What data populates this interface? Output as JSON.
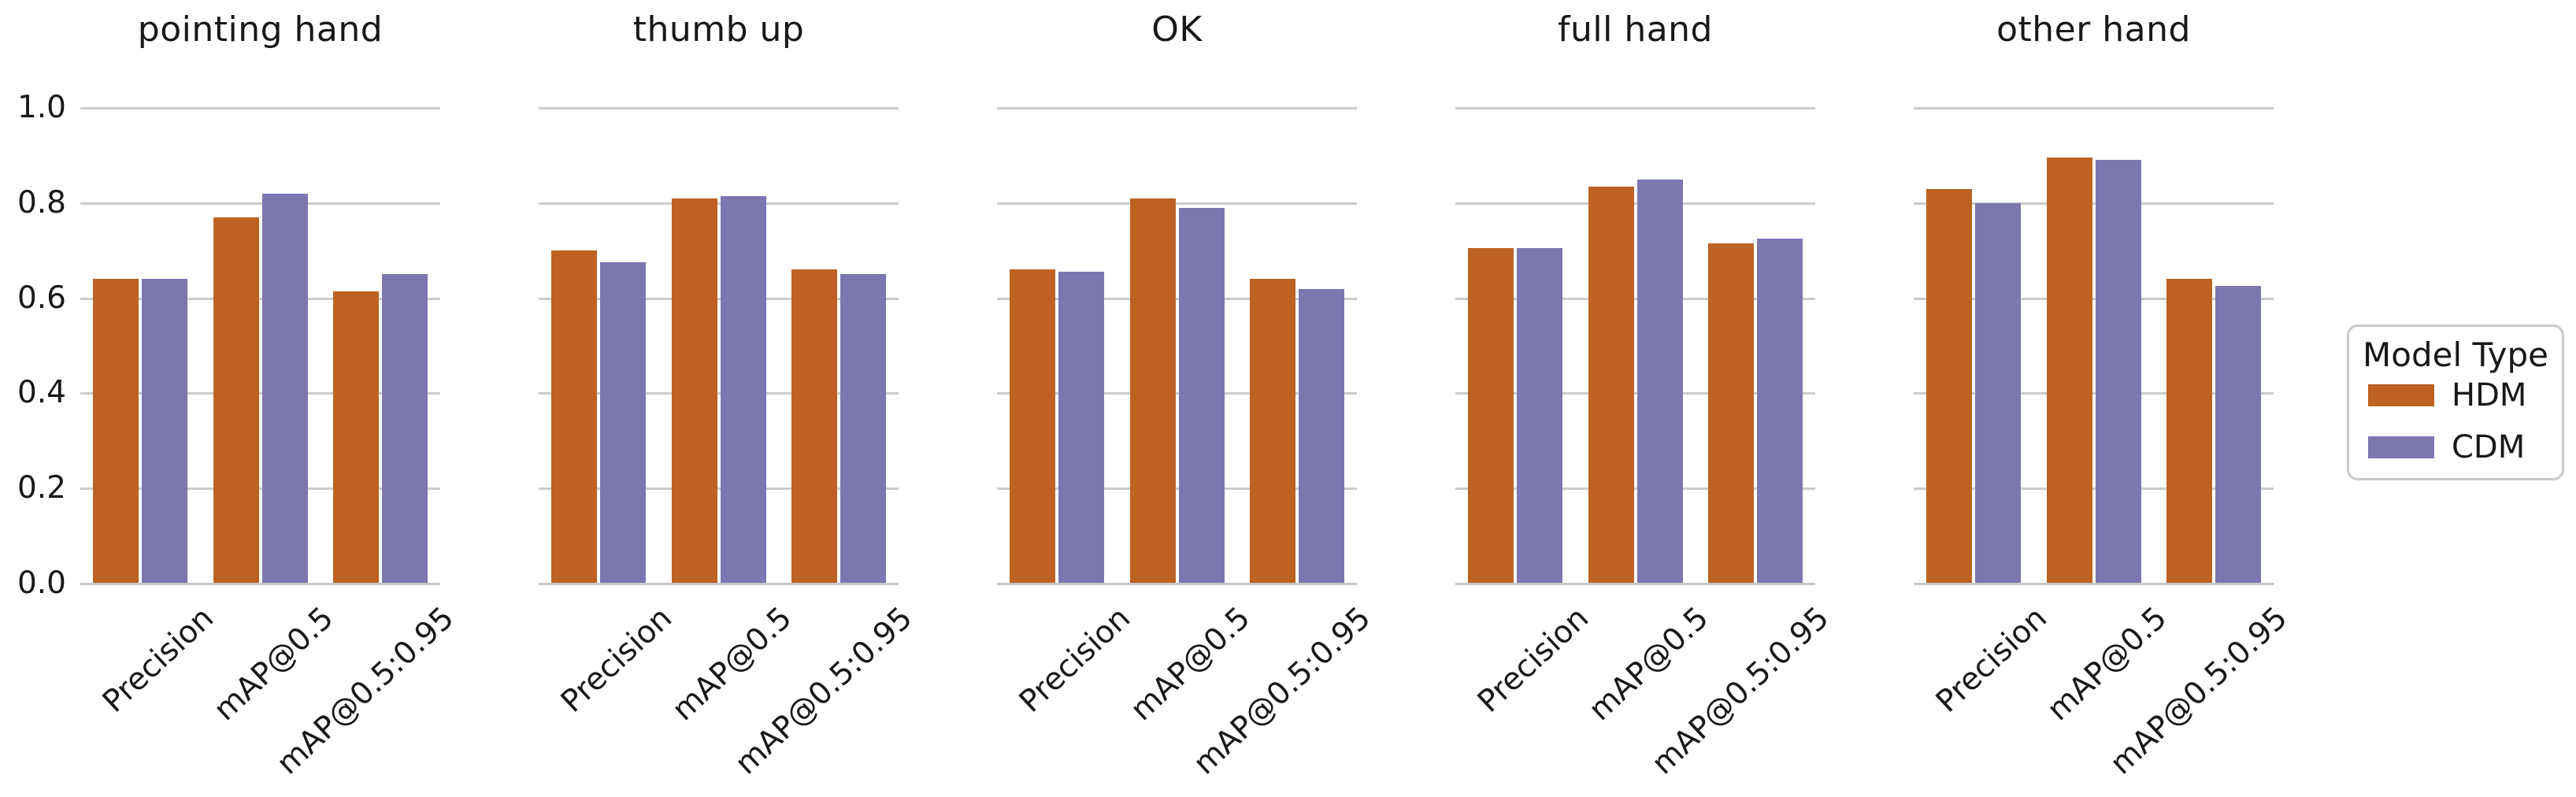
{
  "colors": {
    "hdm": "#bd6222",
    "cdm": "#7c77b0",
    "grid": "#cbcbcb",
    "spine": "#c6c6c6",
    "text": "#181818",
    "background": "#ffffff"
  },
  "legend": {
    "title": "Model Type",
    "entries": [
      {
        "label": "HDM",
        "color": "#bd6222"
      },
      {
        "label": "CDM",
        "color": "#7c77b0"
      }
    ]
  },
  "chart_data": {
    "type": "bar",
    "grid": true,
    "legend_position": "right",
    "legend_title": "Model Type",
    "ylim": [
      0.0,
      1.0
    ],
    "y_ticks": [
      "0.0",
      "0.2",
      "0.4",
      "0.6",
      "0.8",
      "1.0"
    ],
    "categories": [
      "Precision",
      "mAP@0.5",
      "mAP@0.5:0.95"
    ],
    "series_names": [
      "HDM",
      "CDM"
    ],
    "facets": [
      {
        "title": "pointing hand",
        "series": [
          {
            "name": "HDM",
            "values": [
              0.64,
              0.77,
              0.615
            ]
          },
          {
            "name": "CDM",
            "values": [
              0.64,
              0.82,
              0.65
            ]
          }
        ]
      },
      {
        "title": "thumb up",
        "series": [
          {
            "name": "HDM",
            "values": [
              0.7,
              0.81,
              0.66
            ]
          },
          {
            "name": "CDM",
            "values": [
              0.675,
              0.815,
              0.65
            ]
          }
        ]
      },
      {
        "title": "OK",
        "series": [
          {
            "name": "HDM",
            "values": [
              0.66,
              0.81,
              0.64
            ]
          },
          {
            "name": "CDM",
            "values": [
              0.655,
              0.79,
              0.62
            ]
          }
        ]
      },
      {
        "title": "full hand",
        "series": [
          {
            "name": "HDM",
            "values": [
              0.705,
              0.835,
              0.715
            ]
          },
          {
            "name": "CDM",
            "values": [
              0.705,
              0.85,
              0.725
            ]
          }
        ]
      },
      {
        "title": "other hand",
        "series": [
          {
            "name": "HDM",
            "values": [
              0.83,
              0.895,
              0.64
            ]
          },
          {
            "name": "CDM",
            "values": [
              0.8,
              0.89,
              0.625
            ]
          }
        ]
      }
    ]
  }
}
